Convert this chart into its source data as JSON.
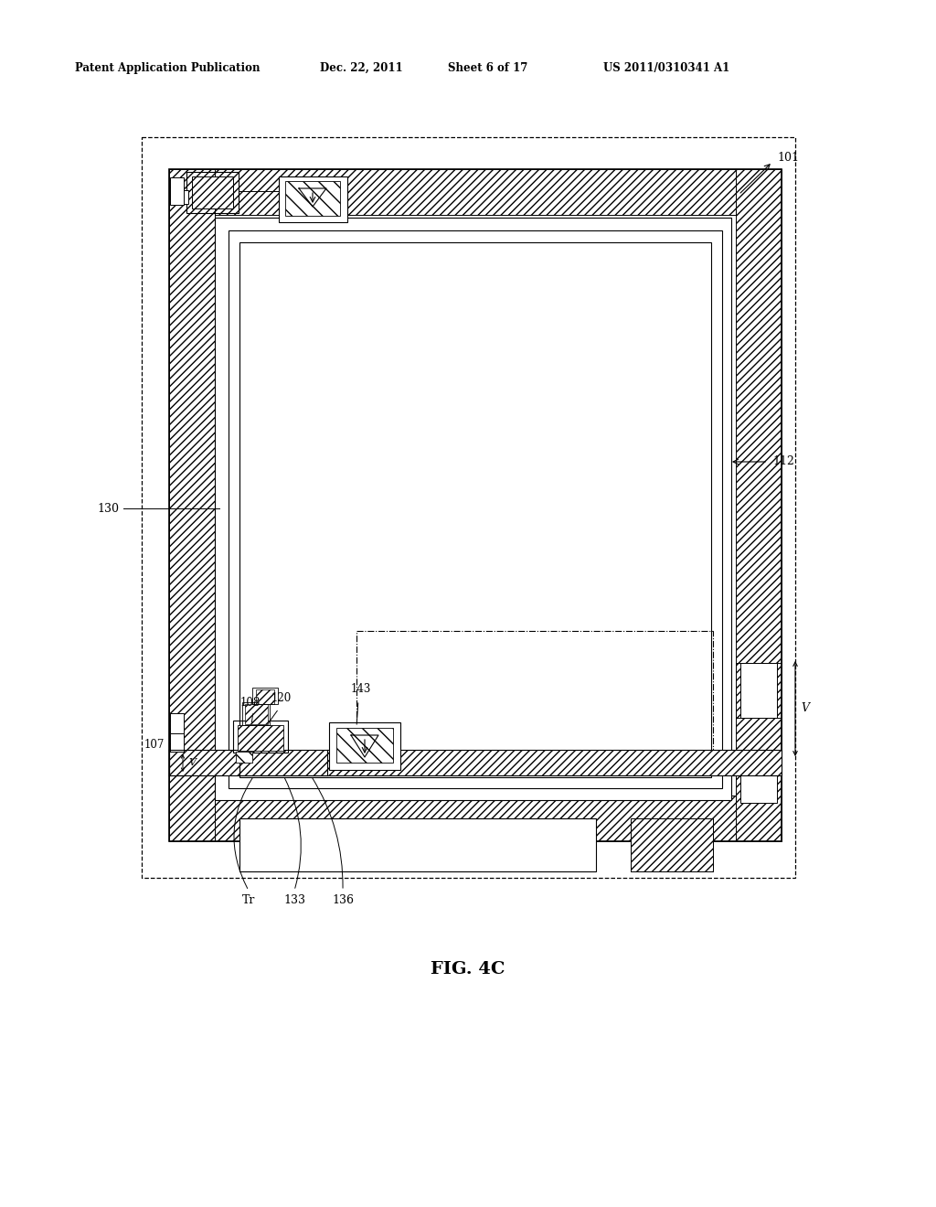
{
  "bg_color": "#ffffff",
  "lc": "#000000",
  "header_left": "Patent Application Publication",
  "header_mid1": "Dec. 22, 2011",
  "header_mid2": "Sheet 6 of 17",
  "header_right": "US 2011/0310341 A1",
  "fig_caption": "FIG. 4C",
  "note_101": "101",
  "note_130": "130",
  "note_112": "112",
  "note_108": "108",
  "note_120": "120",
  "note_143": "143",
  "note_107": "107",
  "note_Tr": "Tr",
  "note_133": "133",
  "note_136": "136",
  "note_V1": "V",
  "note_V2": "V"
}
